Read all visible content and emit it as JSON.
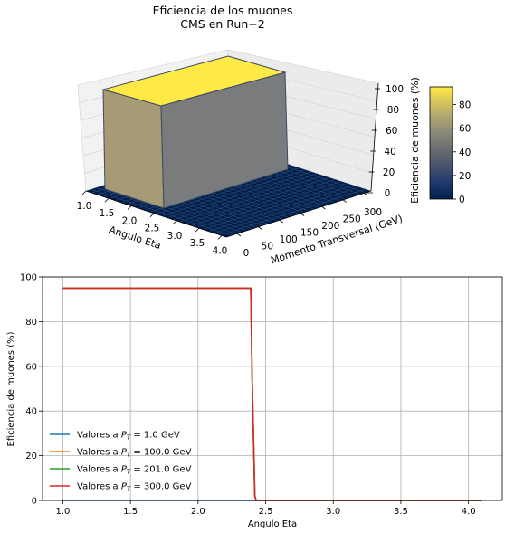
{
  "figure": {
    "title_line1": "Eficiencia de los muones",
    "title_line2": "CMS en Run−2"
  },
  "colors": {
    "plateau_top": "#ffe945",
    "face_left": "#a79b75",
    "face_front": "#797b7c",
    "floor": "#00204c",
    "floor_grid": "#3a4f80",
    "pane": "#f2f2f2",
    "pane_grid": "#d6d6d6",
    "series": [
      "#1f77b4",
      "#ff7f0e",
      "#2ca02c",
      "#d62728"
    ],
    "grid": "#b0b0b0"
  },
  "chart_data": [
    {
      "type": "surface",
      "xlabel": "Angulo Eta",
      "ylabel": "Momento Transversal (GeV)",
      "zlabel": "Eficiencia de muones (%)",
      "x_ticks": [
        "1.0",
        "1.5",
        "2.0",
        "2.5",
        "3.0",
        "3.5",
        "4.0"
      ],
      "y_ticks": [
        "0",
        "50",
        "100",
        "150",
        "200",
        "250",
        "300"
      ],
      "z_ticks": [
        "0",
        "20",
        "40",
        "60",
        "80",
        "100"
      ],
      "xlim": [
        1.0,
        4.1
      ],
      "ylim": [
        0,
        300
      ],
      "zlim": [
        0,
        100
      ],
      "surface": {
        "eta_max": 2.4,
        "value_inside": 95,
        "value_outside": 0
      },
      "colorbar": {
        "colormap": "cividis",
        "range": [
          0,
          95
        ],
        "ticks": [
          "0",
          "20",
          "40",
          "60",
          "80"
        ]
      }
    },
    {
      "type": "line",
      "xlabel": "Angulo Eta",
      "ylabel": "Eficiencia de muones (%)",
      "xlim": [
        0.85,
        4.25
      ],
      "ylim": [
        0,
        100
      ],
      "x_ticks": [
        "1.0",
        "1.5",
        "2.0",
        "2.5",
        "3.0",
        "3.5",
        "4.0"
      ],
      "y_ticks": [
        "0",
        "20",
        "40",
        "60",
        "80",
        "100"
      ],
      "grid": true,
      "legend": "lower-left",
      "series": [
        {
          "name": "Valores a PT = 1.0 GeV",
          "label_pre": "Valores a ",
          "label_var": "P",
          "label_sub": "T",
          "label_post": " = 1.0 GeV",
          "x": [
            1.0,
            2.42,
            2.43,
            4.1
          ],
          "values": [
            0,
            0,
            0,
            0
          ]
        },
        {
          "name": "Valores a PT = 100.0 GeV",
          "label_pre": "Valores a ",
          "label_var": "P",
          "label_sub": "T",
          "label_post": " = 100.0 GeV",
          "x": [
            1.0,
            2.39,
            2.4,
            2.42,
            2.43,
            4.1
          ],
          "values": [
            95,
            95,
            55,
            2,
            0,
            0
          ]
        },
        {
          "name": "Valores a PT = 201.0 GeV",
          "label_pre": "Valores a ",
          "label_var": "P",
          "label_sub": "T",
          "label_post": " = 201.0 GeV",
          "x": [
            1.0,
            2.39,
            2.4,
            2.42,
            2.43,
            4.1
          ],
          "values": [
            95,
            95,
            55,
            2,
            0,
            0
          ]
        },
        {
          "name": "Valores a PT = 300.0 GeV",
          "label_pre": "Valores a ",
          "label_var": "P",
          "label_sub": "T",
          "label_post": " = 300.0 GeV",
          "x": [
            1.0,
            2.39,
            2.4,
            2.42,
            2.43,
            4.1
          ],
          "values": [
            95,
            95,
            55,
            2,
            0,
            0
          ]
        }
      ]
    }
  ]
}
